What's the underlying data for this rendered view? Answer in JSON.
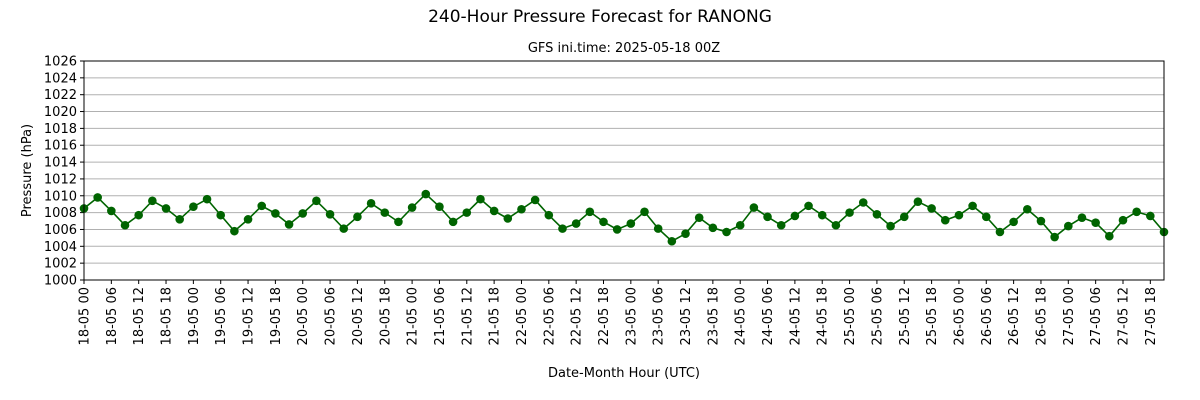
{
  "chart_data": {
    "type": "line",
    "title": "240-Hour Pressure Forecast for RANONG",
    "subtitle": "GFS ini.time: 2025-05-18 00Z",
    "xlabel": "Date-Month Hour (UTC)",
    "ylabel": "Pressure (hPa)",
    "ylim": [
      1000,
      1026
    ],
    "yticks": [
      1000,
      1002,
      1004,
      1006,
      1008,
      1010,
      1012,
      1014,
      1016,
      1018,
      1020,
      1022,
      1024,
      1026
    ],
    "grid": "horizontal",
    "legend": "none",
    "xticks": [
      "18-05 00",
      "18-05 06",
      "18-05 12",
      "18-05 18",
      "19-05 00",
      "19-05 06",
      "19-05 12",
      "19-05 18",
      "20-05 00",
      "20-05 06",
      "20-05 12",
      "20-05 18",
      "21-05 00",
      "21-05 06",
      "21-05 12",
      "21-05 18",
      "22-05 00",
      "22-05 06",
      "22-05 12",
      "22-05 18",
      "23-05 00",
      "23-05 06",
      "23-05 12",
      "23-05 18",
      "24-05 00",
      "24-05 06",
      "24-05 12",
      "24-05 18",
      "25-05 00",
      "25-05 06",
      "25-05 12",
      "25-05 18",
      "26-05 00",
      "26-05 06",
      "26-05 12",
      "26-05 18",
      "27-05 00",
      "27-05 06",
      "27-05 12",
      "27-05 18"
    ],
    "x": [
      "18-05 00",
      "18-05 03",
      "18-05 06",
      "18-05 09",
      "18-05 12",
      "18-05 15",
      "18-05 18",
      "18-05 21",
      "19-05 00",
      "19-05 03",
      "19-05 06",
      "19-05 09",
      "19-05 12",
      "19-05 15",
      "19-05 18",
      "19-05 21",
      "20-05 00",
      "20-05 03",
      "20-05 06",
      "20-05 09",
      "20-05 12",
      "20-05 15",
      "20-05 18",
      "20-05 21",
      "21-05 00",
      "21-05 03",
      "21-05 06",
      "21-05 09",
      "21-05 12",
      "21-05 15",
      "21-05 18",
      "21-05 21",
      "22-05 00",
      "22-05 03",
      "22-05 06",
      "22-05 09",
      "22-05 12",
      "22-05 15",
      "22-05 18",
      "22-05 21",
      "23-05 00",
      "23-05 03",
      "23-05 06",
      "23-05 09",
      "23-05 12",
      "23-05 15",
      "23-05 18",
      "23-05 21",
      "24-05 00",
      "24-05 03",
      "24-05 06",
      "24-05 09",
      "24-05 12",
      "24-05 15",
      "24-05 18",
      "24-05 21",
      "25-05 00",
      "25-05 03",
      "25-05 06",
      "25-05 09",
      "25-05 12",
      "25-05 15",
      "25-05 18",
      "25-05 21",
      "26-05 00",
      "26-05 03",
      "26-05 06",
      "26-05 09",
      "26-05 12",
      "26-05 15",
      "26-05 18",
      "26-05 21",
      "27-05 00",
      "27-05 03",
      "27-05 06",
      "27-05 09",
      "27-05 12",
      "27-05 15",
      "27-05 18",
      "27-05 21"
    ],
    "series": [
      {
        "color": "#006400",
        "values": [
          1008.5,
          1009.8,
          1008.2,
          1006.5,
          1007.7,
          1009.4,
          1008.5,
          1007.2,
          1008.7,
          1009.6,
          1007.7,
          1005.8,
          1007.2,
          1008.8,
          1007.9,
          1006.6,
          1007.9,
          1009.4,
          1007.8,
          1006.1,
          1007.5,
          1009.1,
          1008.0,
          1006.9,
          1008.6,
          1010.2,
          1008.7,
          1006.9,
          1008.0,
          1009.6,
          1008.2,
          1007.3,
          1008.4,
          1009.5,
          1007.7,
          1006.1,
          1006.7,
          1008.1,
          1006.9,
          1006.0,
          1006.7,
          1008.1,
          1006.1,
          1004.6,
          1005.5,
          1007.4,
          1006.2,
          1005.7,
          1006.5,
          1008.6,
          1007.5,
          1006.5,
          1007.6,
          1008.8,
          1007.7,
          1006.5,
          1008.0,
          1009.2,
          1007.8,
          1006.4,
          1007.5,
          1009.3,
          1008.5,
          1007.1,
          1007.7,
          1008.8,
          1007.5,
          1005.7,
          1006.9,
          1008.4,
          1007.0,
          1005.1,
          1006.4,
          1007.4,
          1006.8,
          1005.2,
          1007.1,
          1008.1,
          1007.6,
          1005.7
        ]
      }
    ]
  }
}
